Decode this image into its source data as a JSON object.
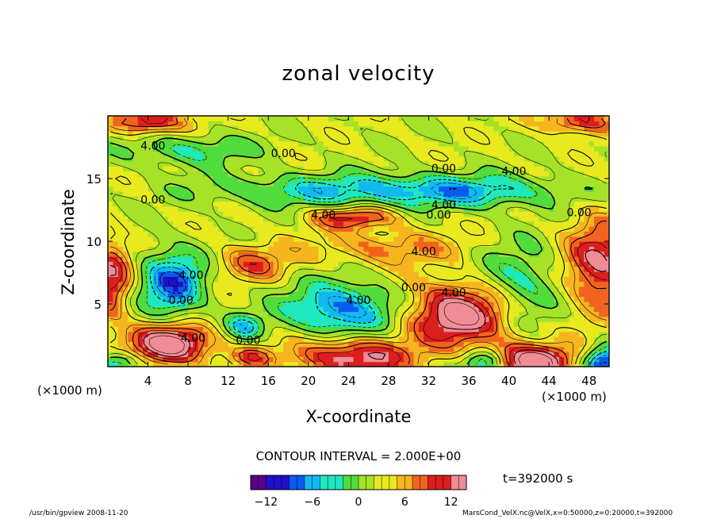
{
  "chart_data": {
    "type": "heatmap",
    "title": "zonal velocity",
    "xlabel": "X-coordinate",
    "ylabel": "Z-coordinate",
    "x_unit_label": "(×1000 m)",
    "x_ticks": [
      4,
      8,
      12,
      16,
      20,
      24,
      28,
      32,
      36,
      40,
      44,
      48
    ],
    "y_ticks": [
      5,
      10,
      15
    ],
    "xlim": [
      0,
      50
    ],
    "ylim": [
      0,
      20
    ],
    "contour_interval_label": "CONTOUR INTERVAL = 2.000E+00",
    "contour_labels": [
      {
        "x": 4.5,
        "z": 17.3,
        "text": "4.00"
      },
      {
        "x": 17.5,
        "z": 16.7,
        "text": "0.00"
      },
      {
        "x": 33.5,
        "z": 15.5,
        "text": "0.00"
      },
      {
        "x": 40.5,
        "z": 15.3,
        "text": "4.00"
      },
      {
        "x": 4.5,
        "z": 13.0,
        "text": "0.00"
      },
      {
        "x": 21.5,
        "z": 11.8,
        "text": "4.00"
      },
      {
        "x": 33.5,
        "z": 12.6,
        "text": "4.00"
      },
      {
        "x": 33.0,
        "z": 11.8,
        "text": "0.00"
      },
      {
        "x": 47.0,
        "z": 12.0,
        "text": "0.00"
      },
      {
        "x": 31.5,
        "z": 8.9,
        "text": "4.00"
      },
      {
        "x": 8.3,
        "z": 7.0,
        "text": "4.00"
      },
      {
        "x": 7.3,
        "z": 5.0,
        "text": "0.00"
      },
      {
        "x": 30.5,
        "z": 6.0,
        "text": "0.00"
      },
      {
        "x": 34.5,
        "z": 5.6,
        "text": "4.00"
      },
      {
        "x": 25.0,
        "z": 5.0,
        "text": "4.00"
      },
      {
        "x": 8.5,
        "z": 2.0,
        "text": "4.00"
      },
      {
        "x": 14.0,
        "z": 1.8,
        "text": "0.00"
      }
    ],
    "features": [
      {
        "x": 6.3,
        "z": 1.8,
        "value": 14,
        "sx": 2.8,
        "sz": 1.1
      },
      {
        "x": 6.5,
        "z": 6.7,
        "value": -11,
        "sx": 2.2,
        "sz": 1.8
      },
      {
        "x": 0.3,
        "z": 7.0,
        "value": 9,
        "sx": 1.4,
        "sz": 2.3
      },
      {
        "x": 23.5,
        "z": 4.6,
        "value": -10,
        "sx": 4.0,
        "sz": 1.5
      },
      {
        "x": 35.0,
        "z": 4.2,
        "value": 13,
        "sx": 3.8,
        "sz": 1.7
      },
      {
        "x": 24.5,
        "z": 0.8,
        "value": 11,
        "sx": 4.0,
        "sz": 1.1
      },
      {
        "x": 42.5,
        "z": 0.4,
        "value": 13,
        "sx": 3.0,
        "sz": 1.0
      },
      {
        "x": 49.5,
        "z": 0.3,
        "value": -12,
        "sx": 1.5,
        "sz": 0.9
      },
      {
        "x": 49.0,
        "z": 8.2,
        "value": 10,
        "sx": 2.3,
        "sz": 2.5
      },
      {
        "x": 41.0,
        "z": 6.5,
        "value": -6,
        "sx": 2.8,
        "sz": 2.2
      },
      {
        "x": 23.5,
        "z": 14.1,
        "value": -7,
        "sx": 9.0,
        "sz": 0.9
      },
      {
        "x": 37.0,
        "z": 14.0,
        "value": -6,
        "sx": 6.0,
        "sz": 0.9
      },
      {
        "x": 8.0,
        "z": 17.3,
        "value": -5,
        "sx": 4.5,
        "sz": 0.9
      },
      {
        "x": 24.5,
        "z": 11.9,
        "value": 8,
        "sx": 3.0,
        "sz": 0.6
      },
      {
        "x": 28.0,
        "z": 9.5,
        "value": 5,
        "sx": 5.0,
        "sz": 1.0
      },
      {
        "x": 14.5,
        "z": 8.3,
        "value": 6,
        "sx": 2.5,
        "sz": 1.0
      },
      {
        "x": 4.0,
        "z": 19.6,
        "value": 10,
        "sx": 2.5,
        "sz": 0.7
      },
      {
        "x": 47.0,
        "z": 19.6,
        "value": 8,
        "sx": 2.5,
        "sz": 0.7
      },
      {
        "x": 13.5,
        "z": 3.2,
        "value": -7,
        "sx": 1.3,
        "sz": 0.7
      },
      {
        "x": 1.0,
        "z": 0.3,
        "value": -8,
        "sx": 1.5,
        "sz": 0.6
      },
      {
        "x": 37.5,
        "z": 0.3,
        "value": -9,
        "sx": 1.5,
        "sz": 0.6
      },
      {
        "x": 14.5,
        "z": 0.8,
        "value": 6,
        "sx": 1.5,
        "sz": 0.6
      }
    ],
    "colorbar": {
      "min": -14,
      "max": 14,
      "ticks": [
        -12,
        -6,
        0,
        6,
        12
      ],
      "colors": [
        "#5a008a",
        "#2010c8",
        "#0a5af0",
        "#12b8f0",
        "#1ee8c0",
        "#50dc3c",
        "#a6e228",
        "#e8ea1e",
        "#f6b41e",
        "#f2641e",
        "#dc1e1e",
        "#f08c96"
      ]
    },
    "time_label": "t=392000 s",
    "footer_left": "/usr/bin/gpview   2008-11-20",
    "footer_right": "MarsCond_VelX.nc@VelX,x=0:50000,z=0:20000,t=392000"
  }
}
